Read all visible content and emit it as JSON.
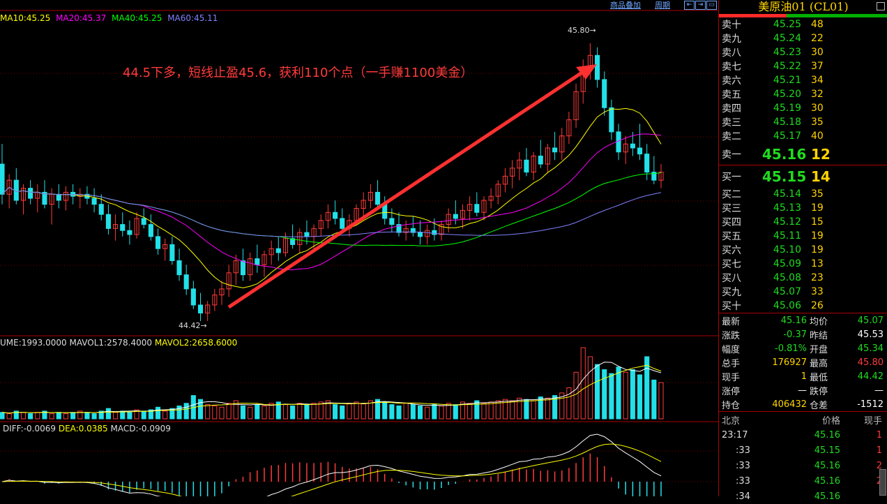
{
  "header": {
    "overlay_label": "商品叠加",
    "period_label": "周期"
  },
  "ma_legend": [
    {
      "text": "MA10:45.25",
      "color": "#ffff00"
    },
    {
      "text": "MA20:45.37",
      "color": "#ff00ff"
    },
    {
      "text": "MA40:45.25",
      "color": "#00ff00"
    },
    {
      "text": "MA60:45.11",
      "color": "#8080ff"
    }
  ],
  "annotation": "44.5下多，短线止盈45.6，获利110个点（一手赚1100美金）",
  "peak_high_label": "45.80",
  "peak_low_label": "44.42",
  "volume_legend": {
    "vol": "UME:1993.0000",
    "mavol1": "MAVOL1:2578.4000",
    "mavol2": "MAVOL2:2658.6000"
  },
  "macd_legend": {
    "diff": "DIFF:-0.0069",
    "dea": "DEA:0.0385",
    "macd": "MACD:-0.0909"
  },
  "panel": {
    "title": "美原油01 (CL01)",
    "asks": [
      {
        "label": "卖十",
        "price": "45.25",
        "qty": "48"
      },
      {
        "label": "卖九",
        "price": "45.24",
        "qty": "22"
      },
      {
        "label": "卖八",
        "price": "45.23",
        "qty": "30"
      },
      {
        "label": "卖七",
        "price": "45.22",
        "qty": "37"
      },
      {
        "label": "卖六",
        "price": "45.21",
        "qty": "34"
      },
      {
        "label": "卖五",
        "price": "45.20",
        "qty": "32"
      },
      {
        "label": "卖四",
        "price": "45.19",
        "qty": "30"
      },
      {
        "label": "卖三",
        "price": "45.18",
        "qty": "35"
      },
      {
        "label": "卖二",
        "price": "45.17",
        "qty": "40"
      },
      {
        "label": "卖一",
        "price": "45.16",
        "qty": "12"
      }
    ],
    "bids": [
      {
        "label": "买一",
        "price": "45.15",
        "qty": "14"
      },
      {
        "label": "买二",
        "price": "45.14",
        "qty": "35"
      },
      {
        "label": "买三",
        "price": "45.13",
        "qty": "19"
      },
      {
        "label": "买四",
        "price": "45.12",
        "qty": "15"
      },
      {
        "label": "买五",
        "price": "45.11",
        "qty": "19"
      },
      {
        "label": "买六",
        "price": "45.10",
        "qty": "19"
      },
      {
        "label": "买七",
        "price": "45.09",
        "qty": "13"
      },
      {
        "label": "买八",
        "price": "45.08",
        "qty": "23"
      },
      {
        "label": "买九",
        "price": "45.07",
        "qty": "33"
      },
      {
        "label": "买十",
        "price": "45.06",
        "qty": "26"
      }
    ],
    "stats": [
      {
        "l1": "最新",
        "v1": "45.16",
        "c1": "green",
        "l2": "均价",
        "v2": "45.07",
        "c2": "green"
      },
      {
        "l1": "涨跌",
        "v1": "-0.37",
        "c1": "green",
        "l2": "昨结",
        "v2": "45.53",
        "c2": "white"
      },
      {
        "l1": "幅度",
        "v1": "-0.81%",
        "c1": "green",
        "l2": "开盘",
        "v2": "45.34",
        "c2": "green"
      },
      {
        "l1": "总手",
        "v1": "176927",
        "c1": "yel",
        "l2": "最高",
        "v2": "45.80",
        "c2": "red"
      },
      {
        "l1": "现手",
        "v1": "1",
        "c1": "yel",
        "l2": "最低",
        "v2": "44.42",
        "c2": "green"
      },
      {
        "l1": "涨停",
        "v1": "—",
        "c1": "white",
        "l2": "跌停",
        "v2": "—",
        "c2": "white"
      },
      {
        "l1": "持仓",
        "v1": "406432",
        "c1": "yel",
        "l2": "仓差",
        "v2": "-1512",
        "c2": "white"
      }
    ],
    "ticks_header": {
      "time": "北京",
      "price": "价格",
      "qty": "现手"
    },
    "ticks": [
      {
        "time": "23:17",
        "price": "45.16",
        "qty": "1"
      },
      {
        "time": ":33",
        "price": "45.15",
        "qty": "1"
      },
      {
        "time": ":33",
        "price": "45.16",
        "qty": "2"
      },
      {
        "time": ":33",
        "price": "45.16",
        "qty": "2"
      },
      {
        "time": ":34",
        "price": "45.16",
        "qty": ""
      }
    ]
  },
  "chart_data": {
    "type": "candlestick",
    "price_range": [
      44.42,
      45.8
    ],
    "ohlc": [
      [
        45.2,
        45.3,
        45.0,
        45.05
      ],
      [
        45.05,
        45.15,
        44.98,
        45.12
      ],
      [
        45.12,
        45.18,
        45.0,
        45.02
      ],
      [
        45.02,
        45.1,
        44.95,
        45.08
      ],
      [
        45.08,
        45.12,
        45.0,
        45.03
      ],
      [
        45.03,
        45.1,
        44.96,
        45.06
      ],
      [
        45.06,
        45.12,
        44.98,
        45.0
      ],
      [
        45.0,
        45.08,
        44.9,
        45.05
      ],
      [
        45.05,
        45.1,
        44.98,
        45.02
      ],
      [
        45.02,
        45.09,
        44.97,
        45.06
      ],
      [
        45.06,
        45.1,
        45.0,
        45.04
      ],
      [
        45.04,
        45.08,
        44.98,
        45.05
      ],
      [
        45.05,
        45.09,
        45.0,
        45.03
      ],
      [
        45.03,
        45.08,
        44.96,
        45.0
      ],
      [
        45.0,
        45.05,
        44.92,
        44.95
      ],
      [
        44.95,
        45.0,
        44.85,
        44.88
      ],
      [
        44.88,
        44.95,
        44.82,
        44.9
      ],
      [
        44.9,
        44.96,
        44.84,
        44.87
      ],
      [
        44.87,
        44.92,
        44.8,
        44.85
      ],
      [
        44.85,
        44.96,
        44.83,
        44.93
      ],
      [
        44.93,
        44.98,
        44.88,
        44.9
      ],
      [
        44.9,
        44.95,
        44.82,
        44.84
      ],
      [
        44.84,
        44.88,
        44.75,
        44.78
      ],
      [
        44.78,
        44.83,
        44.72,
        44.8
      ],
      [
        44.8,
        44.84,
        44.7,
        44.72
      ],
      [
        44.72,
        44.78,
        44.62,
        44.65
      ],
      [
        44.65,
        44.7,
        44.55,
        44.58
      ],
      [
        44.58,
        44.62,
        44.48,
        44.5
      ],
      [
        44.5,
        44.56,
        44.42,
        44.46
      ],
      [
        44.46,
        44.52,
        44.42,
        44.5
      ],
      [
        44.5,
        44.58,
        44.47,
        44.55
      ],
      [
        44.55,
        44.62,
        44.5,
        44.58
      ],
      [
        44.58,
        44.7,
        44.54,
        44.66
      ],
      [
        44.66,
        44.75,
        44.6,
        44.72
      ],
      [
        44.72,
        44.78,
        44.62,
        44.65
      ],
      [
        44.65,
        44.76,
        44.62,
        44.73
      ],
      [
        44.73,
        44.8,
        44.66,
        44.7
      ],
      [
        44.7,
        44.77,
        44.64,
        44.75
      ],
      [
        44.75,
        44.82,
        44.7,
        44.78
      ],
      [
        44.78,
        44.84,
        44.72,
        44.76
      ],
      [
        44.76,
        44.86,
        44.74,
        44.83
      ],
      [
        44.83,
        44.9,
        44.78,
        44.8
      ],
      [
        44.8,
        44.88,
        44.76,
        44.86
      ],
      [
        44.86,
        44.92,
        44.8,
        44.84
      ],
      [
        44.84,
        44.9,
        44.78,
        44.88
      ],
      [
        44.88,
        44.95,
        44.84,
        44.92
      ],
      [
        44.92,
        45.0,
        44.88,
        44.96
      ],
      [
        44.96,
        45.02,
        44.9,
        44.93
      ],
      [
        44.93,
        44.98,
        44.86,
        44.88
      ],
      [
        44.88,
        44.95,
        44.84,
        44.92
      ],
      [
        44.92,
        45.0,
        44.9,
        44.98
      ],
      [
        44.98,
        45.06,
        44.94,
        45.02
      ],
      [
        45.02,
        45.1,
        44.98,
        45.06
      ],
      [
        45.06,
        45.12,
        44.98,
        45.0
      ],
      [
        45.0,
        45.04,
        44.9,
        44.93
      ],
      [
        44.93,
        44.98,
        44.86,
        44.9
      ],
      [
        44.9,
        44.96,
        44.84,
        44.86
      ],
      [
        44.86,
        44.92,
        44.82,
        44.88
      ],
      [
        44.88,
        44.94,
        44.84,
        44.86
      ],
      [
        44.86,
        44.92,
        44.8,
        44.84
      ],
      [
        44.84,
        44.9,
        44.8,
        44.87
      ],
      [
        44.87,
        44.93,
        44.82,
        44.85
      ],
      [
        44.85,
        44.92,
        44.82,
        44.9
      ],
      [
        44.9,
        44.98,
        44.86,
        44.95
      ],
      [
        44.95,
        45.02,
        44.9,
        44.93
      ],
      [
        44.93,
        45.0,
        44.88,
        44.97
      ],
      [
        44.97,
        45.04,
        44.92,
        45.0
      ],
      [
        45.0,
        45.06,
        44.94,
        44.96
      ],
      [
        44.96,
        45.04,
        44.92,
        45.02
      ],
      [
        45.02,
        45.08,
        44.98,
        45.04
      ],
      [
        45.04,
        45.12,
        45.0,
        45.1
      ],
      [
        45.1,
        45.18,
        45.06,
        45.14
      ],
      [
        45.14,
        45.22,
        45.08,
        45.18
      ],
      [
        45.18,
        45.26,
        45.12,
        45.22
      ],
      [
        45.22,
        45.28,
        45.14,
        45.16
      ],
      [
        45.16,
        45.26,
        45.12,
        45.24
      ],
      [
        45.24,
        45.32,
        45.18,
        45.2
      ],
      [
        45.2,
        45.3,
        45.16,
        45.28
      ],
      [
        45.28,
        45.36,
        45.22,
        45.26
      ],
      [
        45.26,
        45.38,
        45.22,
        45.34
      ],
      [
        45.34,
        45.46,
        45.3,
        45.42
      ],
      [
        45.42,
        45.6,
        45.38,
        45.56
      ],
      [
        45.56,
        45.72,
        45.5,
        45.68
      ],
      [
        45.68,
        45.8,
        45.62,
        45.74
      ],
      [
        45.74,
        45.78,
        45.58,
        45.62
      ],
      [
        45.62,
        45.66,
        45.44,
        45.48
      ],
      [
        45.48,
        45.52,
        45.32,
        45.36
      ],
      [
        45.36,
        45.4,
        45.22,
        45.26
      ],
      [
        45.26,
        45.34,
        45.2,
        45.3
      ],
      [
        45.3,
        45.36,
        45.24,
        45.28
      ],
      [
        45.28,
        45.4,
        45.22,
        45.25
      ],
      [
        45.25,
        45.3,
        45.12,
        45.16
      ],
      [
        45.16,
        45.24,
        45.1,
        45.12
      ],
      [
        45.12,
        45.2,
        45.08,
        45.16
      ]
    ],
    "volume": [
      5,
      4,
      6,
      5,
      4,
      5,
      6,
      4,
      5,
      4,
      5,
      6,
      5,
      4,
      6,
      8,
      5,
      6,
      5,
      7,
      6,
      7,
      9,
      6,
      8,
      10,
      12,
      18,
      15,
      11,
      10,
      9,
      12,
      14,
      10,
      9,
      11,
      10,
      12,
      13,
      11,
      10,
      12,
      11,
      12,
      13,
      14,
      11,
      10,
      12,
      13,
      12,
      14,
      15,
      13,
      11,
      10,
      12,
      11,
      10,
      9,
      11,
      10,
      12,
      11,
      13,
      12,
      14,
      12,
      13,
      14,
      15,
      14,
      16,
      15,
      14,
      17,
      16,
      18,
      20,
      24,
      36,
      55,
      48,
      42,
      38,
      35,
      40,
      36,
      38,
      34,
      48,
      30,
      28
    ],
    "ma10_color": "#ffff00",
    "ma20_color": "#ff00ff",
    "ma40_color": "#00ff00",
    "ma60_color": "#8080ff"
  }
}
